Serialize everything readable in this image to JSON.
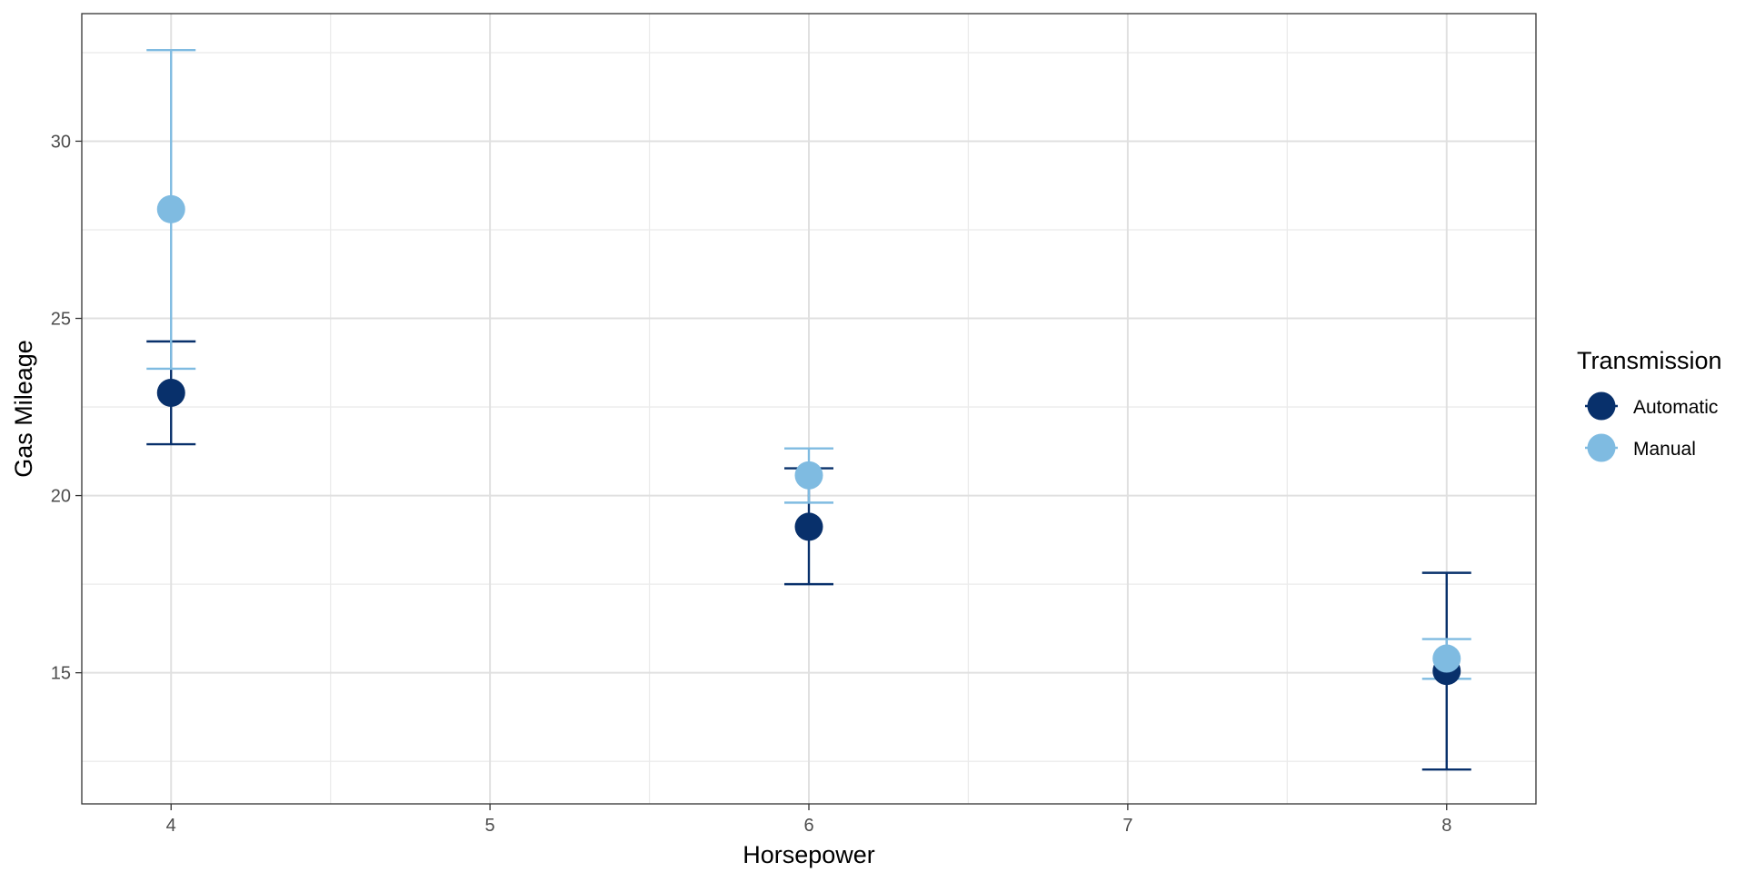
{
  "chart_data": {
    "type": "scatter",
    "title": "",
    "xlabel": "Horsepower",
    "ylabel": "Gas Mileage",
    "x_ticks": [
      4,
      5,
      6,
      7,
      8
    ],
    "y_ticks": [
      15,
      20,
      25,
      30
    ],
    "xlim": [
      3.72,
      8.28
    ],
    "ylim": [
      11.3,
      33.6
    ],
    "grid": true,
    "legend": {
      "title": "Transmission",
      "position": "right",
      "entries": [
        "Automatic",
        "Manual"
      ]
    },
    "series": [
      {
        "name": "Automatic",
        "color": "#08306b",
        "points": [
          {
            "x": 4,
            "y": 22.9,
            "ymin": 21.45,
            "ymax": 24.35
          },
          {
            "x": 6,
            "y": 19.12,
            "ymin": 17.5,
            "ymax": 20.77
          },
          {
            "x": 8,
            "y": 15.05,
            "ymin": 12.27,
            "ymax": 17.82
          }
        ]
      },
      {
        "name": "Manual",
        "color": "#7fbbe1",
        "points": [
          {
            "x": 4,
            "y": 28.08,
            "ymin": 23.58,
            "ymax": 32.57
          },
          {
            "x": 6,
            "y": 20.57,
            "ymin": 19.8,
            "ymax": 21.33
          },
          {
            "x": 8,
            "y": 15.4,
            "ymin": 14.83,
            "ymax": 15.95
          }
        ]
      }
    ]
  }
}
